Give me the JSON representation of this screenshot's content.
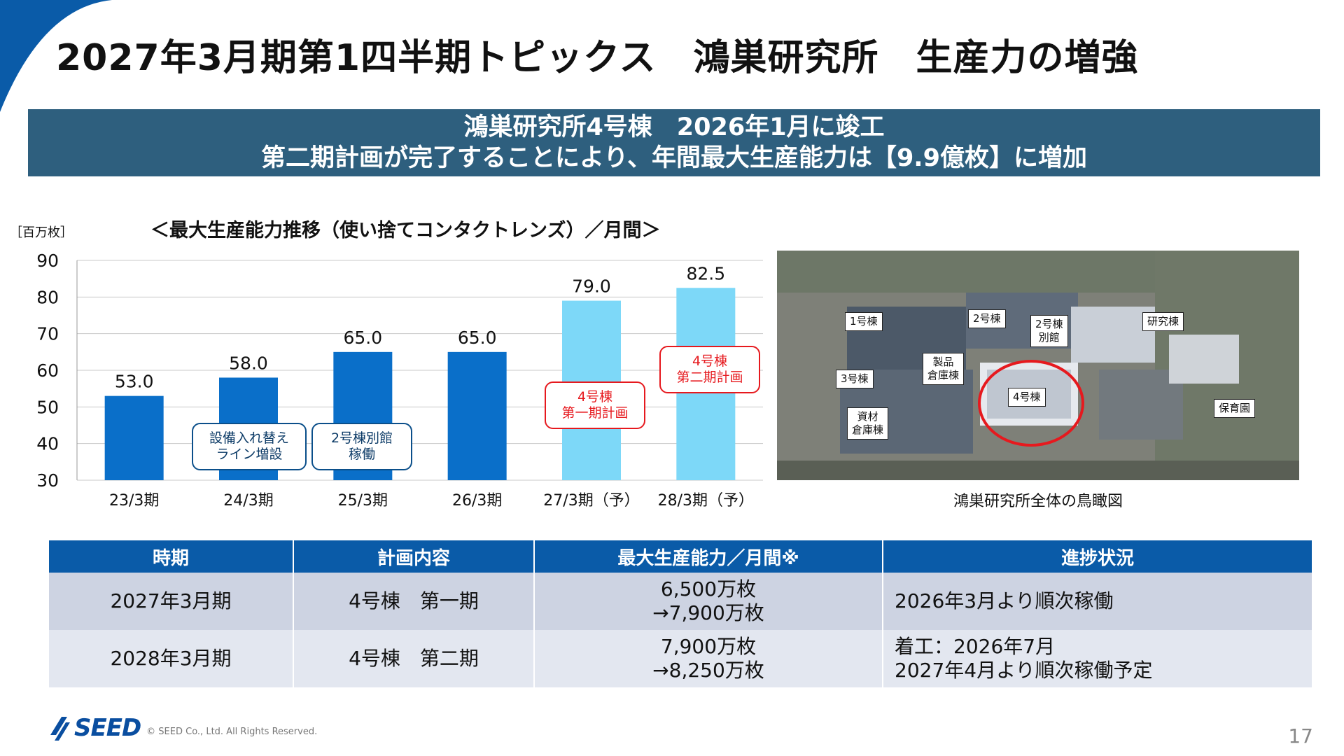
{
  "title": "2027年3月期第1四半期トピックス　鴻巣研究所　生産力の増強",
  "banner": {
    "line1": "鴻巣研究所4号棟　2026年1月に竣工",
    "line2": "第二期計画が完了することにより、年間最大生産能力は【9.9億枚】に増加"
  },
  "chart_data": {
    "type": "bar",
    "title": "＜最大生産能力推移（使い捨てコンタクトレンズ）／月間＞",
    "ylabel": "［百万枚］",
    "ylim": [
      30,
      90
    ],
    "yticks": [
      30,
      40,
      50,
      60,
      70,
      80,
      90
    ],
    "categories": [
      "23/3期",
      "24/3期",
      "25/3期",
      "26/3期",
      "27/3期（予）",
      "28/3期（予）"
    ],
    "values": [
      53.0,
      58.0,
      65.0,
      65.0,
      79.0,
      82.5
    ],
    "value_labels": [
      "53.0",
      "58.0",
      "65.0",
      "65.0",
      "79.0",
      "82.5"
    ],
    "colors": [
      "#0a6fc9",
      "#0a6fc9",
      "#0a6fc9",
      "#0a6fc9",
      "#7dd8f8",
      "#7dd8f8"
    ],
    "grid": true,
    "annotations": [
      {
        "line1": "設備入れ替え",
        "line2": "ライン増設",
        "style": "blue"
      },
      {
        "line1": "2号棟別館",
        "line2": "稼働",
        "style": "blue"
      },
      {
        "line1": "4号棟",
        "line2": "第一期計画",
        "style": "red"
      },
      {
        "line1": "4号棟",
        "line2": "第二期計画",
        "style": "red"
      }
    ]
  },
  "photo": {
    "caption": "鴻巣研究所全体の鳥瞰図",
    "labels": {
      "b1": "1号棟",
      "b2": "2号棟",
      "b2a_1": "2号棟",
      "b2a_2": "別館",
      "lab": "研究棟",
      "prod_1": "製品",
      "prod_2": "倉庫棟",
      "b3": "3号棟",
      "b4": "4号棟",
      "mat_1": "資材",
      "mat_2": "倉庫棟",
      "nursery": "保育園"
    }
  },
  "table": {
    "headers": [
      "時期",
      "計画内容",
      "最大生産能力／月間※",
      "進捗状況"
    ],
    "rows": [
      {
        "period": "2027年3月期",
        "plan": "4号棟　第一期",
        "cap1": "6,500万枚",
        "cap2": "→7,900万枚",
        "status1": "2026年3月より順次稼働",
        "status2": ""
      },
      {
        "period": "2028年3月期",
        "plan": "4号棟　第二期",
        "cap1": "7,900万枚",
        "cap2": "→8,250万枚",
        "status1": "着工：2026年7月",
        "status2": "2027年4月より順次稼働予定"
      }
    ]
  },
  "footer": {
    "logo": "SEED",
    "copyright": "© SEED Co., Ltd. All Rights Reserved.",
    "page": "17"
  },
  "colors": {
    "banner": "#2e5f7e",
    "table_header": "#0a5ba8",
    "accent_red": "#e6191e",
    "brand": "#0a4ea0"
  }
}
